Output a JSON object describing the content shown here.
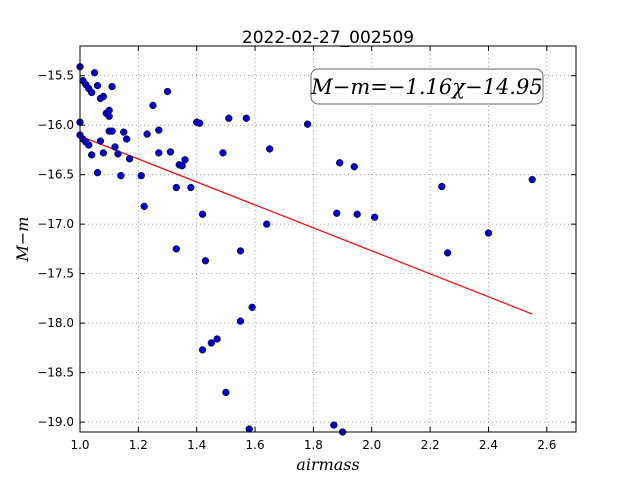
{
  "chart_data": {
    "type": "scatter",
    "title": "2022-02-27_002509",
    "xlabel": "airmass",
    "ylabel": "M−m",
    "xlim": [
      1.0,
      2.7
    ],
    "ylim": [
      -19.1,
      -15.2
    ],
    "x_ticks": [
      1.0,
      1.2,
      1.4,
      1.6,
      1.8,
      2.0,
      2.2,
      2.4,
      2.6
    ],
    "x_tick_labels": [
      "1.0",
      "1.2",
      "1.4",
      "1.6",
      "1.8",
      "2.0",
      "2.2",
      "2.4",
      "2.6"
    ],
    "y_ticks": [
      -15.5,
      -16.0,
      -16.5,
      -17.0,
      -17.5,
      -18.0,
      -18.5,
      -19.0
    ],
    "y_tick_labels": [
      "−15.5",
      "−16.0",
      "−16.5",
      "−17.0",
      "−17.5",
      "−18.0",
      "−18.5",
      "−19.0"
    ],
    "grid": true,
    "annotation": "M−m=−1.16χ−14.95",
    "fit_line": {
      "slope": -1.16,
      "intercept": -14.95,
      "x_range": [
        1.0,
        2.55
      ],
      "color": "#ff0000"
    },
    "point_color": "#0000cc",
    "points": [
      [
        1.0,
        -15.41
      ],
      [
        1.01,
        -15.55
      ],
      [
        1.02,
        -15.59
      ],
      [
        1.03,
        -15.63
      ],
      [
        1.04,
        -15.67
      ],
      [
        1.05,
        -15.47
      ],
      [
        1.06,
        -15.6
      ],
      [
        1.07,
        -15.73
      ],
      [
        1.08,
        -15.71
      ],
      [
        1.09,
        -15.88
      ],
      [
        1.1,
        -15.85
      ],
      [
        1.1,
        -15.91
      ],
      [
        1.11,
        -15.61
      ],
      [
        1.0,
        -15.97
      ],
      [
        1.0,
        -16.1
      ],
      [
        1.01,
        -16.14
      ],
      [
        1.02,
        -16.17
      ],
      [
        1.03,
        -16.2
      ],
      [
        1.04,
        -16.3
      ],
      [
        1.06,
        -16.48
      ],
      [
        1.07,
        -16.16
      ],
      [
        1.08,
        -16.28
      ],
      [
        1.1,
        -16.06
      ],
      [
        1.11,
        -16.06
      ],
      [
        1.12,
        -16.22
      ],
      [
        1.13,
        -16.29
      ],
      [
        1.14,
        -16.51
      ],
      [
        1.15,
        -16.07
      ],
      [
        1.16,
        -16.14
      ],
      [
        1.17,
        -16.34
      ],
      [
        1.21,
        -16.51
      ],
      [
        1.22,
        -16.82
      ],
      [
        1.23,
        -16.09
      ],
      [
        1.25,
        -15.8
      ],
      [
        1.27,
        -16.05
      ],
      [
        1.27,
        -16.28
      ],
      [
        1.3,
        -15.66
      ],
      [
        1.31,
        -16.27
      ],
      [
        1.33,
        -16.63
      ],
      [
        1.34,
        -16.4
      ],
      [
        1.35,
        -16.41
      ],
      [
        1.36,
        -16.35
      ],
      [
        1.38,
        -16.63
      ],
      [
        1.4,
        -15.97
      ],
      [
        1.41,
        -15.98
      ],
      [
        1.42,
        -16.9
      ],
      [
        1.33,
        -17.25
      ],
      [
        1.43,
        -17.37
      ],
      [
        1.49,
        -16.28
      ],
      [
        1.51,
        -15.93
      ],
      [
        1.57,
        -15.93
      ],
      [
        1.55,
        -17.27
      ],
      [
        1.55,
        -17.98
      ],
      [
        1.59,
        -17.84
      ],
      [
        1.42,
        -18.27
      ],
      [
        1.45,
        -18.2
      ],
      [
        1.47,
        -18.16
      ],
      [
        1.5,
        -18.7
      ],
      [
        1.58,
        -19.07
      ],
      [
        1.64,
        -17.0
      ],
      [
        1.65,
        -16.24
      ],
      [
        1.78,
        -15.99
      ],
      [
        1.88,
        -16.89
      ],
      [
        1.89,
        -16.38
      ],
      [
        1.94,
        -16.42
      ],
      [
        1.95,
        -16.9
      ],
      [
        2.01,
        -16.93
      ],
      [
        1.87,
        -19.03
      ],
      [
        1.9,
        -19.1
      ],
      [
        2.24,
        -16.62
      ],
      [
        2.26,
        -17.29
      ],
      [
        2.4,
        -17.09
      ],
      [
        2.55,
        -16.55
      ]
    ]
  }
}
